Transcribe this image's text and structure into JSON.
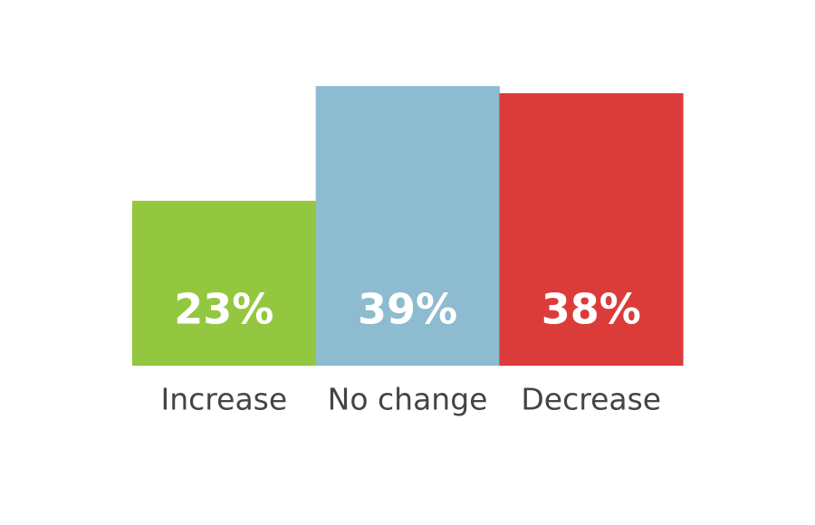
{
  "chart_data": {
    "type": "bar",
    "categories": [
      "Increase",
      "No change",
      "Decrease"
    ],
    "values": [
      23,
      39,
      38
    ],
    "value_labels": [
      "23%",
      "39%",
      "38%"
    ],
    "colors": [
      "#93c73f",
      "#8dbbd0",
      "#db3c3a"
    ]
  }
}
